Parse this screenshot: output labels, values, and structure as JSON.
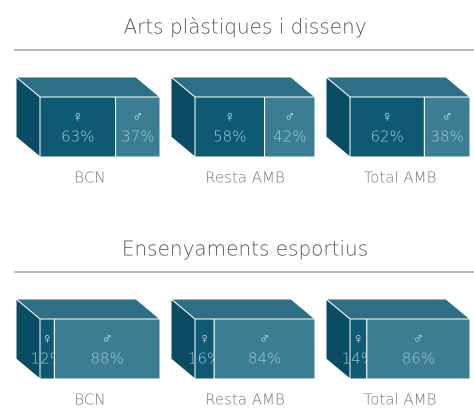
{
  "chart_data": [
    {
      "type": "stacked-box",
      "title": "Arts plàstiques i disseny",
      "categories": [
        "BCN",
        "Resta AMB",
        "Total AMB"
      ],
      "series": [
        {
          "name": "♀",
          "color": "#0e5a75",
          "values": [
            63,
            58,
            62
          ],
          "value_labels": [
            "63%",
            "58%",
            "62%"
          ]
        },
        {
          "name": "♂",
          "color": "#3b7d92",
          "values": [
            37,
            42,
            38
          ],
          "value_labels": [
            "37%",
            "42%",
            "38%"
          ]
        }
      ]
    },
    {
      "type": "stacked-box",
      "title": "Ensenyaments esportius",
      "categories": [
        "BCN",
        "Resta AMB",
        "Total AMB"
      ],
      "series": [
        {
          "name": "♀",
          "color": "#0e5a75",
          "values": [
            12,
            16,
            14
          ],
          "value_labels": [
            "12%",
            "16%",
            "14%"
          ]
        },
        {
          "name": "♂",
          "color": "#3b7d92",
          "values": [
            88,
            84,
            86
          ],
          "value_labels": [
            "88%",
            "84%",
            "86%"
          ]
        }
      ]
    }
  ]
}
